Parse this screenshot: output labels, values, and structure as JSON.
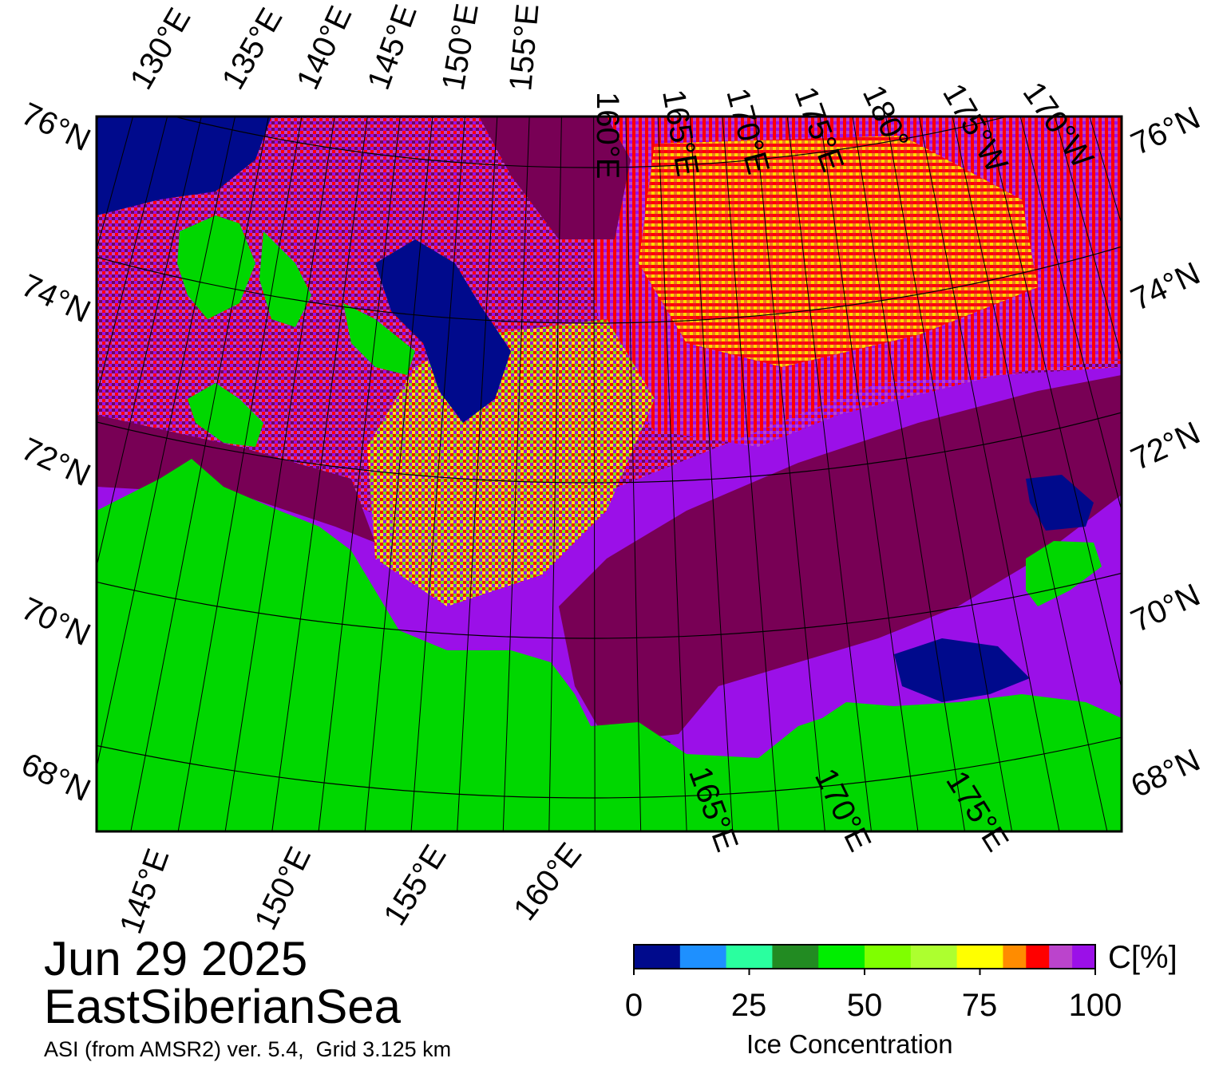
{
  "map": {
    "title_date": "Jun 29 2025",
    "region": "EastSiberianSea",
    "product": "ASI (from AMSR2) ver. 5.4,  Grid 3.125 km",
    "top_lon_labels": [
      "130°E",
      "135°E",
      "140°E",
      "145°E",
      "150°E",
      "155°E",
      "160°E",
      "165°E",
      "170°E",
      "175°E",
      "180°",
      "175°W",
      "170°W"
    ],
    "bottom_lon_labels": [
      "145°E",
      "150°E",
      "155°E",
      "160°E",
      "165°E",
      "170°E",
      "175°E"
    ],
    "lat_labels": [
      "76°N",
      "74°N",
      "72°N",
      "70°N",
      "68°N"
    ],
    "colors": {
      "land": "#00d700",
      "open_water": "#000a8c",
      "full_ice": "#780055",
      "ice_high": "#9b10e8",
      "ice_mid": "#ff0000",
      "ice_low": "#ffff00",
      "land_mask_gray": "#888888"
    }
  },
  "colorbar": {
    "unit": "C[%]",
    "title": "Ice Concentration",
    "ticks": [
      "0",
      "25",
      "50",
      "75",
      "100"
    ],
    "tick_values": [
      0,
      25,
      50,
      75,
      100
    ],
    "colors": [
      "#000a8c",
      "#1e90ff",
      "#2aff9f",
      "#228b22",
      "#00ee00",
      "#7fff00",
      "#adff2f",
      "#ffff00",
      "#ff8c00",
      "#ff0000",
      "#bb44cc",
      "#9b10e8",
      "#780055"
    ],
    "stops": [
      0,
      10,
      20,
      30,
      40,
      50,
      60,
      70,
      80,
      85,
      90,
      95,
      100
    ]
  }
}
